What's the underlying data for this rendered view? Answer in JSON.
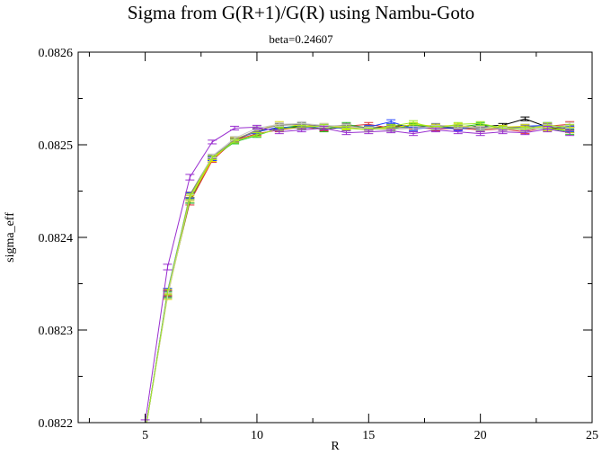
{
  "chart_data": {
    "type": "line",
    "title": "Sigma from G(R+1)/G(R) using Nambu-Goto",
    "subtitle": "beta=0.24607",
    "xlabel": "R",
    "ylabel": "sigma_eff",
    "xlim": [
      2,
      25
    ],
    "ylim": [
      0.0822,
      0.0826
    ],
    "xticks": [
      "5",
      "10",
      "15",
      "20",
      "25"
    ],
    "yticks": [
      "0.0822",
      "0.0823",
      "0.0824",
      "0.0825",
      "0.0826"
    ],
    "grid": false,
    "legend": "none",
    "error_bars": true,
    "series": [
      {
        "color": "#000000",
        "x": [
          5,
          6,
          7,
          8,
          9,
          10,
          11,
          12,
          13,
          14,
          15,
          16,
          17,
          18,
          19,
          20,
          21,
          22,
          23,
          24
        ],
        "y": [
          0.08219,
          0.08234,
          0.08244,
          0.082485,
          0.082505,
          0.082515,
          0.082518,
          0.08252,
          0.082517,
          0.082519,
          0.082518,
          0.08252,
          0.082521,
          0.082519,
          0.082518,
          0.08252,
          0.082521,
          0.082528,
          0.082519,
          0.082516
        ],
        "err": [
          3e-06,
          3e-06,
          3e-06,
          2e-06,
          2e-06,
          2e-06,
          2e-06,
          2e-06,
          2e-06,
          2e-06,
          2e-06,
          2e-06,
          2e-06,
          2e-06,
          2e-06,
          2e-06,
          2e-06,
          2e-06,
          3e-06,
          3e-06
        ]
      },
      {
        "color": "#e03030",
        "x": [
          5,
          6,
          7,
          8,
          9,
          10,
          11,
          12,
          13,
          14,
          15,
          16,
          17,
          18,
          19,
          20,
          21,
          22,
          23,
          24
        ],
        "y": [
          0.08219,
          0.08234,
          0.082438,
          0.082483,
          0.082505,
          0.082512,
          0.082516,
          0.082519,
          0.082517,
          0.08252,
          0.082522,
          0.082518,
          0.082519,
          0.082517,
          0.082518,
          0.082516,
          0.082517,
          0.082514,
          0.08252,
          0.082522
        ],
        "err": [
          3e-06,
          3e-06,
          3e-06,
          2e-06,
          2e-06,
          2e-06,
          2e-06,
          2e-06,
          2e-06,
          2e-06,
          2e-06,
          2e-06,
          2e-06,
          2e-06,
          2e-06,
          2e-06,
          2e-06,
          2e-06,
          3e-06,
          3e-06
        ]
      },
      {
        "color": "#20c020",
        "x": [
          5,
          6,
          7,
          8,
          9,
          10,
          11,
          12,
          13,
          14,
          15,
          16,
          17,
          18,
          19,
          20,
          21,
          22,
          23,
          24
        ],
        "y": [
          0.08219,
          0.082338,
          0.08244,
          0.082486,
          0.082503,
          0.08251,
          0.082518,
          0.082521,
          0.082516,
          0.082522,
          0.082518,
          0.082517,
          0.082521,
          0.08252,
          0.082519,
          0.082522,
          0.082518,
          0.082517,
          0.082518,
          0.082514
        ],
        "err": [
          3e-06,
          3e-06,
          3e-06,
          2e-06,
          2e-06,
          2e-06,
          2e-06,
          2e-06,
          2e-06,
          2e-06,
          2e-06,
          2e-06,
          2e-06,
          2e-06,
          2e-06,
          2e-06,
          2e-06,
          2e-06,
          3e-06,
          3e-06
        ]
      },
      {
        "color": "#2040ff",
        "x": [
          5,
          6,
          7,
          8,
          9,
          10,
          11,
          12,
          13,
          14,
          15,
          16,
          17,
          18,
          19,
          20,
          21,
          22,
          23,
          24
        ],
        "y": [
          0.08219,
          0.082342,
          0.082445,
          0.082485,
          0.082506,
          0.082514,
          0.082519,
          0.082518,
          0.08252,
          0.082517,
          0.082519,
          0.082525,
          0.082517,
          0.082519,
          0.082517,
          0.082519,
          0.082518,
          0.08252,
          0.082521,
          0.082517
        ],
        "err": [
          3e-06,
          3e-06,
          3e-06,
          2e-06,
          2e-06,
          2e-06,
          2e-06,
          2e-06,
          2e-06,
          2e-06,
          2e-06,
          2e-06,
          2e-06,
          2e-06,
          2e-06,
          2e-06,
          2e-06,
          2e-06,
          3e-06,
          3e-06
        ]
      },
      {
        "color": "#e0e000",
        "x": [
          5,
          6,
          7,
          8,
          9,
          10,
          11,
          12,
          13,
          14,
          15,
          16,
          17,
          18,
          19,
          20,
          21,
          22,
          23,
          24
        ],
        "y": [
          0.08219,
          0.082336,
          0.082442,
          0.082484,
          0.082506,
          0.082515,
          0.082523,
          0.08252,
          0.082521,
          0.082519,
          0.082517,
          0.082518,
          0.082522,
          0.08252,
          0.082521,
          0.082518,
          0.082519,
          0.08252,
          0.082518,
          0.082516
        ],
        "err": [
          3e-06,
          3e-06,
          3e-06,
          2e-06,
          2e-06,
          2e-06,
          2e-06,
          2e-06,
          2e-06,
          2e-06,
          2e-06,
          2e-06,
          2e-06,
          2e-06,
          2e-06,
          2e-06,
          2e-06,
          2e-06,
          3e-06,
          3e-06
        ]
      },
      {
        "color": "#808080",
        "x": [
          5,
          6,
          7,
          8,
          9,
          10,
          11,
          12,
          13,
          14,
          15,
          16,
          17,
          18,
          19,
          20,
          21,
          22,
          23,
          24
        ],
        "y": [
          0.08219,
          0.082339,
          0.082446,
          0.082487,
          0.082505,
          0.082516,
          0.082521,
          0.082522,
          0.08252,
          0.082521,
          0.082518,
          0.082519,
          0.082518,
          0.082521,
          0.082519,
          0.082517,
          0.082518,
          0.082519,
          0.08252,
          0.082518
        ],
        "err": [
          3e-06,
          3e-06,
          3e-06,
          2e-06,
          2e-06,
          2e-06,
          2e-06,
          2e-06,
          2e-06,
          2e-06,
          2e-06,
          2e-06,
          2e-06,
          2e-06,
          2e-06,
          2e-06,
          2e-06,
          2e-06,
          3e-06,
          3e-06
        ]
      },
      {
        "color": "#c8c8c8",
        "x": [
          5,
          6,
          7,
          8,
          9,
          10,
          11,
          12,
          13,
          14,
          15,
          16,
          17,
          18,
          19,
          20,
          21,
          22,
          23,
          24
        ],
        "y": [
          0.08219,
          0.082337,
          0.082443,
          0.082488,
          0.082507,
          0.082518,
          0.082522,
          0.082523,
          0.082521,
          0.08252,
          0.082517,
          0.082516,
          0.082518,
          0.082519,
          0.08252,
          0.082518,
          0.082517,
          0.082516,
          0.082519,
          0.082521
        ],
        "err": [
          3e-06,
          3e-06,
          3e-06,
          2e-06,
          2e-06,
          2e-06,
          2e-06,
          2e-06,
          2e-06,
          2e-06,
          2e-06,
          2e-06,
          2e-06,
          2e-06,
          2e-06,
          2e-06,
          2e-06,
          2e-06,
          3e-06,
          3e-06
        ]
      },
      {
        "color": "#a0e820",
        "x": [
          5,
          6,
          7,
          8,
          9,
          10,
          11,
          12,
          13,
          14,
          15,
          16,
          17,
          18,
          19,
          20,
          21,
          22,
          23,
          24
        ],
        "y": [
          0.08219,
          0.082341,
          0.082444,
          0.082486,
          0.082504,
          0.082511,
          0.082517,
          0.082519,
          0.08252,
          0.082518,
          0.082516,
          0.08252,
          0.082524,
          0.082518,
          0.082522,
          0.082523,
          0.082518,
          0.082517,
          0.082521,
          0.082519
        ],
        "err": [
          3e-06,
          3e-06,
          3e-06,
          2e-06,
          2e-06,
          2e-06,
          2e-06,
          2e-06,
          2e-06,
          2e-06,
          2e-06,
          2e-06,
          2e-06,
          2e-06,
          2e-06,
          2e-06,
          2e-06,
          2e-06,
          3e-06,
          3e-06
        ]
      },
      {
        "color": "#9a30d0",
        "x": [
          5,
          6,
          7,
          8,
          9,
          10,
          11,
          12,
          13,
          14,
          15,
          16,
          17,
          18,
          19,
          20,
          21,
          22,
          23,
          24
        ],
        "y": [
          0.0822,
          0.082368,
          0.082465,
          0.082503,
          0.082518,
          0.082519,
          0.082514,
          0.082516,
          0.082518,
          0.082513,
          0.082514,
          0.082515,
          0.082512,
          0.082516,
          0.082514,
          0.082512,
          0.082514,
          0.082513,
          0.082517,
          0.082513
        ],
        "err": [
          3e-06,
          3e-06,
          3e-06,
          2e-06,
          2e-06,
          2e-06,
          2e-06,
          2e-06,
          2e-06,
          2e-06,
          2e-06,
          2e-06,
          2e-06,
          2e-06,
          2e-06,
          2e-06,
          2e-06,
          2e-06,
          3e-06,
          3e-06
        ]
      }
    ]
  }
}
